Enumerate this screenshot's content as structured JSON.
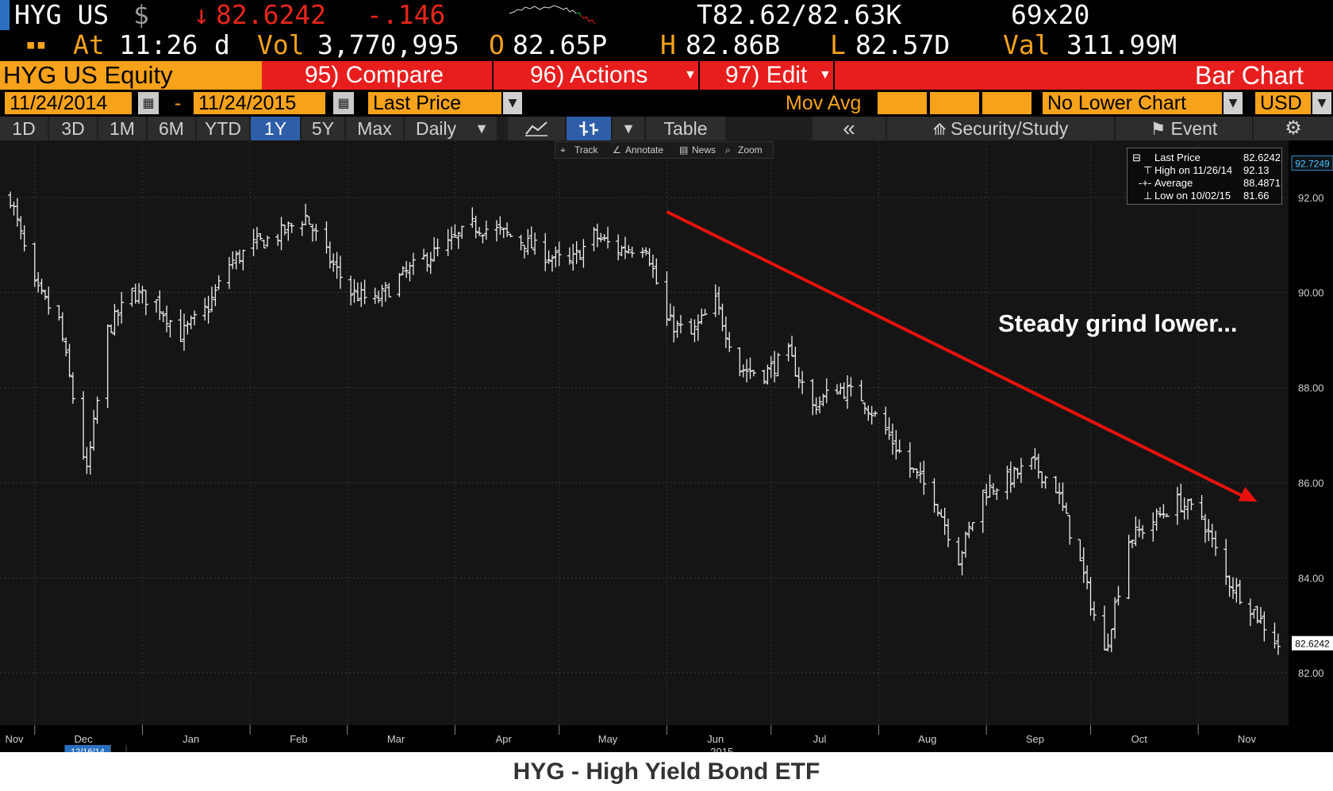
{
  "header": {
    "ticker": "HYG US",
    "currency_symbol": "$",
    "arrow": "↓",
    "last_price": "82.6242",
    "change": "-.146",
    "bid_ask": "T82.62/82.63K",
    "size": "69x20",
    "time_label": "At",
    "time": "11:26",
    "time_suffix": "d",
    "vol_label": "Vol",
    "volume": "3,770,995",
    "open_label": "O",
    "open": "82.65P",
    "high_label": "H",
    "high": "82.86B",
    "low_label": "L",
    "low": "82.57D",
    "val_label": "Val",
    "value": "311.99M"
  },
  "menu": {
    "equity": "HYG US Equity",
    "compare": "95) Compare",
    "actions": "96) Actions",
    "edit": "97) Edit",
    "title": "Bar Chart"
  },
  "fields": {
    "start_date": "11/24/2014",
    "dash": "-",
    "end_date": "11/24/2015",
    "price_field": "Last Price",
    "mov_avg": "Mov Avg",
    "lower_chart": "No Lower Chart",
    "currency": "USD"
  },
  "periods": [
    "1D",
    "3D",
    "1M",
    "6M",
    "YTD",
    "1Y",
    "5Y",
    "Max"
  ],
  "selected_period": "1Y",
  "toolbar": {
    "frequency": "Daily",
    "table": "Table",
    "collapse": "«",
    "security_study": "Security/Study",
    "event": "Event"
  },
  "tools": {
    "track": "Track",
    "annotate": "Annotate",
    "news": "News",
    "zoom": "Zoom"
  },
  "legend": {
    "last_price_label": "Last Price",
    "last_price": "82.6242",
    "high_label": "High on 11/26/14",
    "high": "92.13",
    "avg_label": "Average",
    "avg": "88.4871",
    "low_label": "Low on 10/02/15",
    "low": "81.66"
  },
  "annotation": "Steady grind lower...",
  "caption": "HYG - High Yield Bond ETF",
  "colors": {
    "amber": "#f7a21b",
    "red": "#e8261a",
    "selected": "#2e5ea8",
    "trend_arrow": "#e8120c"
  },
  "chart_data": {
    "type": "bar",
    "title": "",
    "x_tick_labels": [
      "Nov",
      "Dec",
      "Jan",
      "Feb",
      "Mar",
      "Apr",
      "May",
      "Jun",
      "Jul",
      "Aug",
      "Sep",
      "Oct",
      "Nov"
    ],
    "year_label": "2015",
    "crosshair_date": "12/16/14",
    "y_ticks": [
      82,
      84,
      86,
      88,
      90,
      92
    ],
    "y_tick_labels": [
      "82.00",
      "84.00",
      "86.00",
      "88.00",
      "90.00",
      "92.00"
    ],
    "ylim": [
      80.9,
      93.2
    ],
    "last_price_tag": "82.6242",
    "top_tag": "92.7249",
    "trend_arrow": {
      "from": [
        "2015-06-01",
        91.7
      ],
      "to": [
        "2015-11-18",
        85.6
      ]
    },
    "series": [
      {
        "x": [
          "2014-11-24",
          "2014-12-01",
          "2014-12-08",
          "2014-12-16",
          "2014-12-22",
          "2014-12-29",
          "2015-01-05",
          "2015-01-12",
          "2015-01-20",
          "2015-01-26",
          "2015-02-02",
          "2015-02-09",
          "2015-02-17",
          "2015-02-23",
          "2015-03-02",
          "2015-03-09",
          "2015-03-16",
          "2015-03-23",
          "2015-03-30",
          "2015-04-06",
          "2015-04-13",
          "2015-04-20",
          "2015-04-27",
          "2015-05-04",
          "2015-05-11",
          "2015-05-18",
          "2015-05-26",
          "2015-06-01",
          "2015-06-08",
          "2015-06-15",
          "2015-06-22",
          "2015-06-29",
          "2015-07-06",
          "2015-07-13",
          "2015-07-20",
          "2015-07-27",
          "2015-08-03",
          "2015-08-10",
          "2015-08-17",
          "2015-08-24",
          "2015-08-31",
          "2015-09-08",
          "2015-09-14",
          "2015-09-21",
          "2015-09-28",
          "2015-10-05",
          "2015-10-12",
          "2015-10-19",
          "2015-10-26",
          "2015-11-02",
          "2015-11-09",
          "2015-11-16",
          "2015-11-24"
        ],
        "values": [
          92.0,
          90.1,
          89.4,
          86.2,
          89.2,
          90.0,
          89.8,
          89.1,
          89.7,
          90.6,
          91.0,
          91.2,
          91.6,
          90.8,
          90.0,
          89.8,
          90.3,
          90.7,
          91.0,
          91.4,
          91.3,
          91.1,
          90.8,
          90.6,
          91.2,
          90.9,
          91.0,
          89.4,
          89.1,
          89.8,
          88.4,
          88.3,
          88.7,
          87.6,
          88.0,
          87.8,
          87.1,
          86.3,
          85.7,
          84.4,
          85.8,
          86.1,
          86.4,
          85.9,
          84.3,
          82.4,
          84.8,
          85.2,
          85.6,
          85.3,
          84.0,
          83.4,
          82.6
        ]
      }
    ]
  }
}
